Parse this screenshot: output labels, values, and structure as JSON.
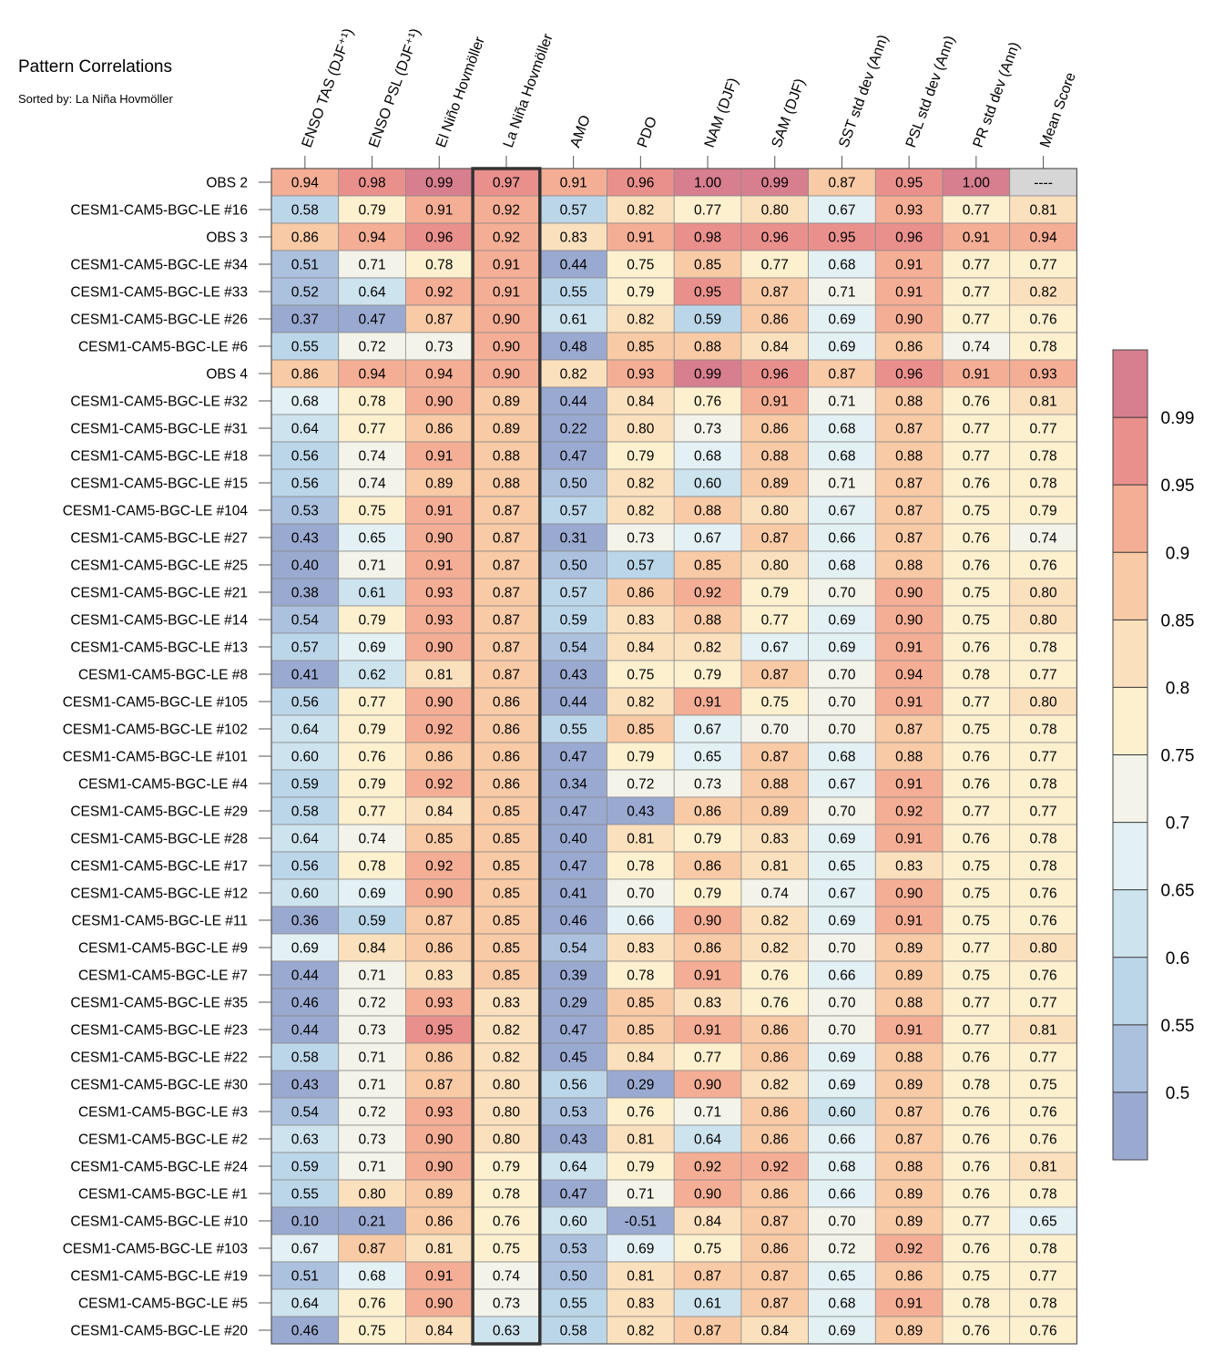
{
  "chart_data": {
    "type": "heatmap",
    "title": "Pattern Correlations",
    "subtitle": "Sorted by: La Niña Hovmöller",
    "columns": [
      "ENSO TAS (DJF⁺¹)",
      "ENSO PSL (DJF⁺¹)",
      "El Niño Hovmöller",
      "La Niña Hovmöller",
      "AMO",
      "PDO",
      "NAM (DJF)",
      "SAM (DJF)",
      "SST std dev (Ann)",
      "PSL std dev (Ann)",
      "PR std dev (Ann)",
      "Mean Score"
    ],
    "highlighted_column": "La Niña Hovmöller",
    "rows": [
      {
        "label": "OBS 2",
        "values": [
          "0.94",
          "0.98",
          "0.99",
          "0.97",
          "0.91",
          "0.96",
          "1.00",
          "0.99",
          "0.87",
          "0.95",
          "1.00",
          "----"
        ]
      },
      {
        "label": "CESM1-CAM5-BGC-LE #16",
        "values": [
          "0.58",
          "0.79",
          "0.91",
          "0.92",
          "0.57",
          "0.82",
          "0.77",
          "0.80",
          "0.67",
          "0.93",
          "0.77",
          "0.81"
        ]
      },
      {
        "label": "OBS 3",
        "values": [
          "0.86",
          "0.94",
          "0.96",
          "0.92",
          "0.83",
          "0.91",
          "0.98",
          "0.96",
          "0.95",
          "0.96",
          "0.91",
          "0.94"
        ]
      },
      {
        "label": "CESM1-CAM5-BGC-LE #34",
        "values": [
          "0.51",
          "0.71",
          "0.78",
          "0.91",
          "0.44",
          "0.75",
          "0.85",
          "0.77",
          "0.68",
          "0.91",
          "0.77",
          "0.77"
        ]
      },
      {
        "label": "CESM1-CAM5-BGC-LE #33",
        "values": [
          "0.52",
          "0.64",
          "0.92",
          "0.91",
          "0.55",
          "0.79",
          "0.95",
          "0.87",
          "0.71",
          "0.91",
          "0.77",
          "0.82"
        ]
      },
      {
        "label": "CESM1-CAM5-BGC-LE #26",
        "values": [
          "0.37",
          "0.47",
          "0.87",
          "0.90",
          "0.61",
          "0.82",
          "0.59",
          "0.86",
          "0.69",
          "0.90",
          "0.77",
          "0.76"
        ]
      },
      {
        "label": "CESM1-CAM5-BGC-LE #6",
        "values": [
          "0.55",
          "0.72",
          "0.73",
          "0.90",
          "0.48",
          "0.85",
          "0.88",
          "0.84",
          "0.69",
          "0.86",
          "0.74",
          "0.78"
        ]
      },
      {
        "label": "OBS 4",
        "values": [
          "0.86",
          "0.94",
          "0.94",
          "0.90",
          "0.82",
          "0.93",
          "0.99",
          "0.96",
          "0.87",
          "0.96",
          "0.91",
          "0.93"
        ]
      },
      {
        "label": "CESM1-CAM5-BGC-LE #32",
        "values": [
          "0.68",
          "0.78",
          "0.90",
          "0.89",
          "0.44",
          "0.84",
          "0.76",
          "0.91",
          "0.71",
          "0.88",
          "0.76",
          "0.81"
        ]
      },
      {
        "label": "CESM1-CAM5-BGC-LE #31",
        "values": [
          "0.64",
          "0.77",
          "0.86",
          "0.89",
          "0.22",
          "0.80",
          "0.73",
          "0.86",
          "0.68",
          "0.87",
          "0.77",
          "0.77"
        ]
      },
      {
        "label": "CESM1-CAM5-BGC-LE #18",
        "values": [
          "0.56",
          "0.74",
          "0.91",
          "0.88",
          "0.47",
          "0.79",
          "0.68",
          "0.88",
          "0.68",
          "0.88",
          "0.77",
          "0.78"
        ]
      },
      {
        "label": "CESM1-CAM5-BGC-LE #15",
        "values": [
          "0.56",
          "0.74",
          "0.89",
          "0.88",
          "0.50",
          "0.82",
          "0.60",
          "0.89",
          "0.71",
          "0.87",
          "0.76",
          "0.78"
        ]
      },
      {
        "label": "CESM1-CAM5-BGC-LE #104",
        "values": [
          "0.53",
          "0.75",
          "0.91",
          "0.87",
          "0.57",
          "0.82",
          "0.88",
          "0.80",
          "0.67",
          "0.87",
          "0.75",
          "0.79"
        ]
      },
      {
        "label": "CESM1-CAM5-BGC-LE #27",
        "values": [
          "0.43",
          "0.65",
          "0.90",
          "0.87",
          "0.31",
          "0.73",
          "0.67",
          "0.87",
          "0.66",
          "0.87",
          "0.76",
          "0.74"
        ]
      },
      {
        "label": "CESM1-CAM5-BGC-LE #25",
        "values": [
          "0.40",
          "0.71",
          "0.91",
          "0.87",
          "0.50",
          "0.57",
          "0.85",
          "0.80",
          "0.68",
          "0.88",
          "0.76",
          "0.76"
        ]
      },
      {
        "label": "CESM1-CAM5-BGC-LE #21",
        "values": [
          "0.38",
          "0.61",
          "0.93",
          "0.87",
          "0.57",
          "0.86",
          "0.92",
          "0.79",
          "0.70",
          "0.90",
          "0.75",
          "0.80"
        ]
      },
      {
        "label": "CESM1-CAM5-BGC-LE #14",
        "values": [
          "0.54",
          "0.79",
          "0.93",
          "0.87",
          "0.59",
          "0.83",
          "0.88",
          "0.77",
          "0.69",
          "0.90",
          "0.75",
          "0.80"
        ]
      },
      {
        "label": "CESM1-CAM5-BGC-LE #13",
        "values": [
          "0.57",
          "0.69",
          "0.90",
          "0.87",
          "0.54",
          "0.84",
          "0.82",
          "0.67",
          "0.69",
          "0.91",
          "0.76",
          "0.78"
        ]
      },
      {
        "label": "CESM1-CAM5-BGC-LE #8",
        "values": [
          "0.41",
          "0.62",
          "0.81",
          "0.87",
          "0.43",
          "0.75",
          "0.79",
          "0.87",
          "0.70",
          "0.94",
          "0.78",
          "0.77"
        ]
      },
      {
        "label": "CESM1-CAM5-BGC-LE #105",
        "values": [
          "0.56",
          "0.77",
          "0.90",
          "0.86",
          "0.44",
          "0.82",
          "0.91",
          "0.75",
          "0.70",
          "0.91",
          "0.77",
          "0.80"
        ]
      },
      {
        "label": "CESM1-CAM5-BGC-LE #102",
        "values": [
          "0.64",
          "0.79",
          "0.92",
          "0.86",
          "0.55",
          "0.85",
          "0.67",
          "0.70",
          "0.70",
          "0.87",
          "0.75",
          "0.78"
        ]
      },
      {
        "label": "CESM1-CAM5-BGC-LE #101",
        "values": [
          "0.60",
          "0.76",
          "0.86",
          "0.86",
          "0.47",
          "0.79",
          "0.65",
          "0.87",
          "0.68",
          "0.88",
          "0.76",
          "0.77"
        ]
      },
      {
        "label": "CESM1-CAM5-BGC-LE #4",
        "values": [
          "0.59",
          "0.79",
          "0.92",
          "0.86",
          "0.34",
          "0.72",
          "0.73",
          "0.88",
          "0.67",
          "0.91",
          "0.76",
          "0.78"
        ]
      },
      {
        "label": "CESM1-CAM5-BGC-LE #29",
        "values": [
          "0.58",
          "0.77",
          "0.84",
          "0.85",
          "0.47",
          "0.43",
          "0.86",
          "0.89",
          "0.70",
          "0.92",
          "0.77",
          "0.77"
        ]
      },
      {
        "label": "CESM1-CAM5-BGC-LE #28",
        "values": [
          "0.64",
          "0.74",
          "0.85",
          "0.85",
          "0.40",
          "0.81",
          "0.79",
          "0.83",
          "0.69",
          "0.91",
          "0.76",
          "0.78"
        ]
      },
      {
        "label": "CESM1-CAM5-BGC-LE #17",
        "values": [
          "0.56",
          "0.78",
          "0.92",
          "0.85",
          "0.47",
          "0.78",
          "0.86",
          "0.81",
          "0.65",
          "0.83",
          "0.75",
          "0.78"
        ]
      },
      {
        "label": "CESM1-CAM5-BGC-LE #12",
        "values": [
          "0.60",
          "0.69",
          "0.90",
          "0.85",
          "0.41",
          "0.70",
          "0.79",
          "0.74",
          "0.67",
          "0.90",
          "0.75",
          "0.76"
        ]
      },
      {
        "label": "CESM1-CAM5-BGC-LE #11",
        "values": [
          "0.36",
          "0.59",
          "0.87",
          "0.85",
          "0.46",
          "0.66",
          "0.90",
          "0.82",
          "0.69",
          "0.91",
          "0.75",
          "0.76"
        ]
      },
      {
        "label": "CESM1-CAM5-BGC-LE #9",
        "values": [
          "0.69",
          "0.84",
          "0.86",
          "0.85",
          "0.54",
          "0.83",
          "0.86",
          "0.82",
          "0.70",
          "0.89",
          "0.77",
          "0.80"
        ]
      },
      {
        "label": "CESM1-CAM5-BGC-LE #7",
        "values": [
          "0.44",
          "0.71",
          "0.83",
          "0.85",
          "0.39",
          "0.78",
          "0.91",
          "0.76",
          "0.66",
          "0.89",
          "0.75",
          "0.76"
        ]
      },
      {
        "label": "CESM1-CAM5-BGC-LE #35",
        "values": [
          "0.46",
          "0.72",
          "0.93",
          "0.83",
          "0.29",
          "0.85",
          "0.83",
          "0.76",
          "0.70",
          "0.88",
          "0.77",
          "0.77"
        ]
      },
      {
        "label": "CESM1-CAM5-BGC-LE #23",
        "values": [
          "0.44",
          "0.73",
          "0.95",
          "0.82",
          "0.47",
          "0.85",
          "0.91",
          "0.86",
          "0.70",
          "0.91",
          "0.77",
          "0.81"
        ]
      },
      {
        "label": "CESM1-CAM5-BGC-LE #22",
        "values": [
          "0.58",
          "0.71",
          "0.86",
          "0.82",
          "0.45",
          "0.84",
          "0.77",
          "0.86",
          "0.69",
          "0.88",
          "0.76",
          "0.77"
        ]
      },
      {
        "label": "CESM1-CAM5-BGC-LE #30",
        "values": [
          "0.43",
          "0.71",
          "0.87",
          "0.80",
          "0.56",
          "0.29",
          "0.90",
          "0.82",
          "0.69",
          "0.89",
          "0.78",
          "0.75"
        ]
      },
      {
        "label": "CESM1-CAM5-BGC-LE #3",
        "values": [
          "0.54",
          "0.72",
          "0.93",
          "0.80",
          "0.53",
          "0.76",
          "0.71",
          "0.86",
          "0.60",
          "0.87",
          "0.76",
          "0.76"
        ]
      },
      {
        "label": "CESM1-CAM5-BGC-LE #2",
        "values": [
          "0.63",
          "0.73",
          "0.90",
          "0.80",
          "0.43",
          "0.81",
          "0.64",
          "0.86",
          "0.66",
          "0.87",
          "0.76",
          "0.76"
        ]
      },
      {
        "label": "CESM1-CAM5-BGC-LE #24",
        "values": [
          "0.59",
          "0.71",
          "0.90",
          "0.79",
          "0.64",
          "0.79",
          "0.92",
          "0.92",
          "0.68",
          "0.88",
          "0.76",
          "0.81"
        ]
      },
      {
        "label": "CESM1-CAM5-BGC-LE #1",
        "values": [
          "0.55",
          "0.80",
          "0.89",
          "0.78",
          "0.47",
          "0.71",
          "0.90",
          "0.86",
          "0.66",
          "0.89",
          "0.76",
          "0.78"
        ]
      },
      {
        "label": "CESM1-CAM5-BGC-LE #10",
        "values": [
          "0.10",
          "0.21",
          "0.86",
          "0.76",
          "0.60",
          "-0.51",
          "0.84",
          "0.87",
          "0.70",
          "0.89",
          "0.77",
          "0.65"
        ]
      },
      {
        "label": "CESM1-CAM5-BGC-LE #103",
        "values": [
          "0.67",
          "0.87",
          "0.81",
          "0.75",
          "0.53",
          "0.69",
          "0.75",
          "0.86",
          "0.72",
          "0.92",
          "0.76",
          "0.78"
        ]
      },
      {
        "label": "CESM1-CAM5-BGC-LE #19",
        "values": [
          "0.51",
          "0.68",
          "0.91",
          "0.74",
          "0.50",
          "0.81",
          "0.87",
          "0.87",
          "0.65",
          "0.86",
          "0.75",
          "0.77"
        ]
      },
      {
        "label": "CESM1-CAM5-BGC-LE #5",
        "values": [
          "0.64",
          "0.76",
          "0.90",
          "0.73",
          "0.55",
          "0.83",
          "0.61",
          "0.87",
          "0.68",
          "0.91",
          "0.78",
          "0.78"
        ]
      },
      {
        "label": "CESM1-CAM5-BGC-LE #20",
        "values": [
          "0.46",
          "0.75",
          "0.84",
          "0.63",
          "0.58",
          "0.82",
          "0.87",
          "0.84",
          "0.69",
          "0.89",
          "0.76",
          "0.76"
        ]
      }
    ],
    "colorbar": {
      "levels": [
        0.5,
        0.55,
        0.6,
        0.65,
        0.7,
        0.75,
        0.8,
        0.85,
        0.9,
        0.95,
        0.99
      ],
      "tick_labels": [
        "0.5",
        "0.55",
        "0.6",
        "0.65",
        "0.7",
        "0.75",
        "0.8",
        "0.85",
        "0.9",
        "0.95",
        "0.99"
      ],
      "colors": [
        "#9aa9d0",
        "#abc1de",
        "#bcd6e9",
        "#cde3ee",
        "#e3f0f4",
        "#f3f3ea",
        "#fdf0cf",
        "#fbe0bd",
        "#f8caa6",
        "#f4ae95",
        "#e9908d",
        "#d77f8f"
      ],
      "missing_color": "#d6d6d6",
      "position": "right"
    }
  }
}
